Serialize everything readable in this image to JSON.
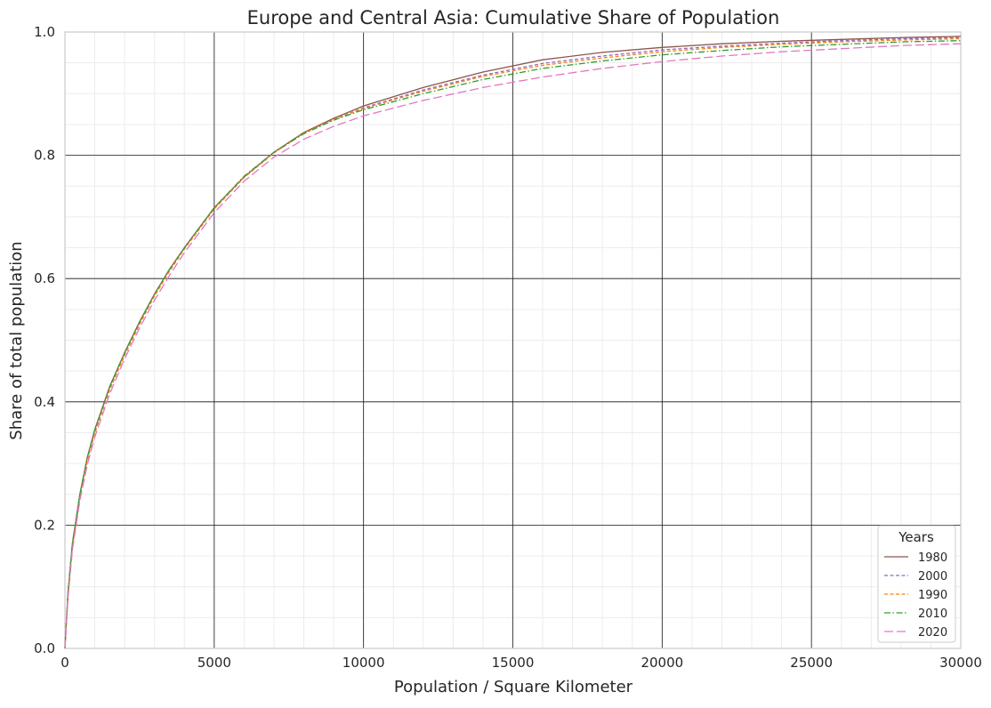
{
  "chart_data": {
    "type": "line",
    "title": "Europe and Central Asia: Cumulative Share of Population",
    "xlabel": "Population / Square Kilometer",
    "ylabel": "Share of total population",
    "xlim": [
      0,
      30000
    ],
    "ylim": [
      0,
      1.0
    ],
    "xticks": [
      0,
      5000,
      10000,
      15000,
      20000,
      25000,
      30000
    ],
    "yticks": [
      0.0,
      0.2,
      0.4,
      0.6,
      0.8,
      1.0
    ],
    "xtick_labels": [
      "0",
      "5000",
      "10000",
      "15000",
      "20000",
      "25000",
      "30000"
    ],
    "ytick_labels": [
      "0.0",
      "0.2",
      "0.4",
      "0.6",
      "0.8",
      "1.0"
    ],
    "grid": true,
    "legend": {
      "title": "Years",
      "placement": "lower-right"
    },
    "x": [
      0,
      100,
      250,
      500,
      750,
      1000,
      1500,
      2000,
      2500,
      3000,
      3500,
      4000,
      5000,
      6000,
      7000,
      8000,
      9000,
      10000,
      12000,
      14000,
      16000,
      18000,
      20000,
      22000,
      24000,
      26000,
      28000,
      30000
    ],
    "series": [
      {
        "name": "1980",
        "color": "#8c564b",
        "dash": "solid",
        "values": [
          0.0,
          0.09,
          0.17,
          0.25,
          0.31,
          0.355,
          0.425,
          0.48,
          0.53,
          0.575,
          0.615,
          0.65,
          0.715,
          0.765,
          0.805,
          0.837,
          0.86,
          0.88,
          0.91,
          0.935,
          0.955,
          0.967,
          0.975,
          0.981,
          0.985,
          0.988,
          0.991,
          0.993
        ]
      },
      {
        "name": "2000",
        "color": "#9467bd",
        "dash": "dashed",
        "values": [
          0.0,
          0.085,
          0.165,
          0.245,
          0.305,
          0.35,
          0.42,
          0.476,
          0.526,
          0.572,
          0.612,
          0.648,
          0.713,
          0.764,
          0.804,
          0.836,
          0.858,
          0.877,
          0.906,
          0.93,
          0.949,
          0.961,
          0.971,
          0.977,
          0.982,
          0.986,
          0.989,
          0.991
        ]
      },
      {
        "name": "1990",
        "color": "#ff7f0e",
        "dash": "dashed",
        "values": [
          0.0,
          0.085,
          0.165,
          0.245,
          0.305,
          0.35,
          0.42,
          0.476,
          0.526,
          0.572,
          0.612,
          0.648,
          0.713,
          0.764,
          0.804,
          0.836,
          0.858,
          0.876,
          0.904,
          0.928,
          0.946,
          0.958,
          0.968,
          0.975,
          0.98,
          0.984,
          0.987,
          0.989
        ]
      },
      {
        "name": "2010",
        "color": "#2ca02c",
        "dash": "dashdot",
        "values": [
          0.0,
          0.09,
          0.17,
          0.25,
          0.31,
          0.355,
          0.425,
          0.48,
          0.53,
          0.575,
          0.615,
          0.65,
          0.715,
          0.766,
          0.805,
          0.835,
          0.857,
          0.874,
          0.9,
          0.923,
          0.941,
          0.953,
          0.963,
          0.97,
          0.976,
          0.98,
          0.984,
          0.986
        ]
      },
      {
        "name": "2020",
        "color": "#e377c2",
        "dash": "longdash",
        "values": [
          0.0,
          0.08,
          0.16,
          0.24,
          0.298,
          0.343,
          0.413,
          0.47,
          0.52,
          0.565,
          0.605,
          0.642,
          0.707,
          0.758,
          0.797,
          0.826,
          0.847,
          0.864,
          0.889,
          0.91,
          0.927,
          0.941,
          0.952,
          0.961,
          0.968,
          0.973,
          0.978,
          0.981
        ]
      }
    ]
  }
}
